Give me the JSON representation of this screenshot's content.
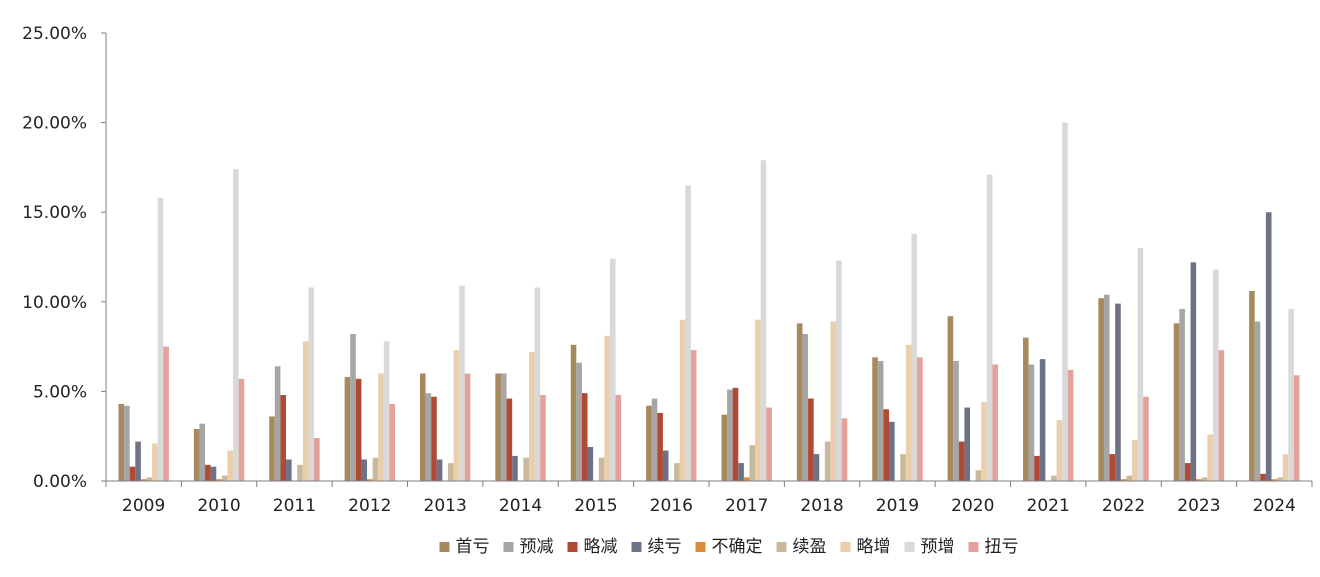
{
  "chart_data": {
    "type": "bar",
    "title": "",
    "xlabel": "",
    "ylabel": "",
    "ylim": [
      0,
      25
    ],
    "y_ticks": [
      "0.00%",
      "5.00%",
      "10.00%",
      "15.00%",
      "20.00%",
      "25.00%"
    ],
    "y_tick_values": [
      0,
      5,
      10,
      15,
      20,
      25
    ],
    "legend_position": "bottom",
    "grid": false,
    "categories": [
      "2009",
      "2010",
      "2011",
      "2012",
      "2013",
      "2014",
      "2015",
      "2016",
      "2017",
      "2018",
      "2019",
      "2020",
      "2021",
      "2022",
      "2023",
      "2024"
    ],
    "series": [
      {
        "name": "首亏",
        "color": "#a68a5e",
        "values": [
          4.3,
          2.9,
          3.6,
          5.8,
          6.0,
          6.0,
          7.6,
          4.2,
          3.7,
          8.8,
          6.9,
          9.2,
          8.0,
          10.2,
          8.8,
          10.6
        ]
      },
      {
        "name": "预减",
        "color": "#a6a6a6",
        "values": [
          4.2,
          3.2,
          6.4,
          8.2,
          4.9,
          6.0,
          6.6,
          4.6,
          5.1,
          8.2,
          6.7,
          6.7,
          6.5,
          10.4,
          9.6,
          8.9
        ]
      },
      {
        "name": "略减",
        "color": "#b04a35",
        "values": [
          0.8,
          0.9,
          4.8,
          5.7,
          4.7,
          4.6,
          4.9,
          3.8,
          5.2,
          4.6,
          4.0,
          2.2,
          1.4,
          1.5,
          1.0,
          0.4
        ]
      },
      {
        "name": "续亏",
        "color": "#6d7287",
        "values": [
          2.2,
          0.8,
          1.2,
          1.2,
          1.2,
          1.4,
          1.9,
          1.7,
          1.0,
          1.5,
          3.3,
          4.1,
          6.8,
          9.9,
          12.2,
          15.0
        ]
      },
      {
        "name": "不确定",
        "color": "#d98b3c",
        "values": [
          0.1,
          0.1,
          0.0,
          0.1,
          0.0,
          0.0,
          0.0,
          0.0,
          0.2,
          0.0,
          0.0,
          0.0,
          0.0,
          0.1,
          0.1,
          0.1
        ]
      },
      {
        "name": "续盈",
        "color": "#c9b89c",
        "values": [
          0.2,
          0.3,
          0.9,
          1.3,
          1.0,
          1.3,
          1.3,
          1.0,
          2.0,
          2.2,
          1.5,
          0.6,
          0.3,
          0.3,
          0.2,
          0.2
        ]
      },
      {
        "name": "略增",
        "color": "#eacfac",
        "values": [
          2.1,
          1.7,
          7.8,
          6.0,
          7.3,
          7.2,
          8.1,
          9.0,
          9.0,
          8.9,
          7.6,
          4.4,
          3.4,
          2.3,
          2.6,
          1.5
        ]
      },
      {
        "name": "预增",
        "color": "#d9d9d9",
        "values": [
          15.8,
          17.4,
          10.8,
          7.8,
          10.9,
          10.8,
          12.4,
          16.5,
          17.9,
          12.3,
          13.8,
          17.1,
          20.0,
          13.0,
          11.8,
          9.6
        ]
      },
      {
        "name": "扭亏",
        "color": "#e4a09b",
        "values": [
          7.5,
          5.7,
          2.4,
          4.3,
          6.0,
          4.8,
          4.8,
          7.3,
          4.1,
          3.5,
          6.9,
          6.5,
          6.2,
          4.7,
          7.3,
          5.9
        ]
      }
    ]
  }
}
